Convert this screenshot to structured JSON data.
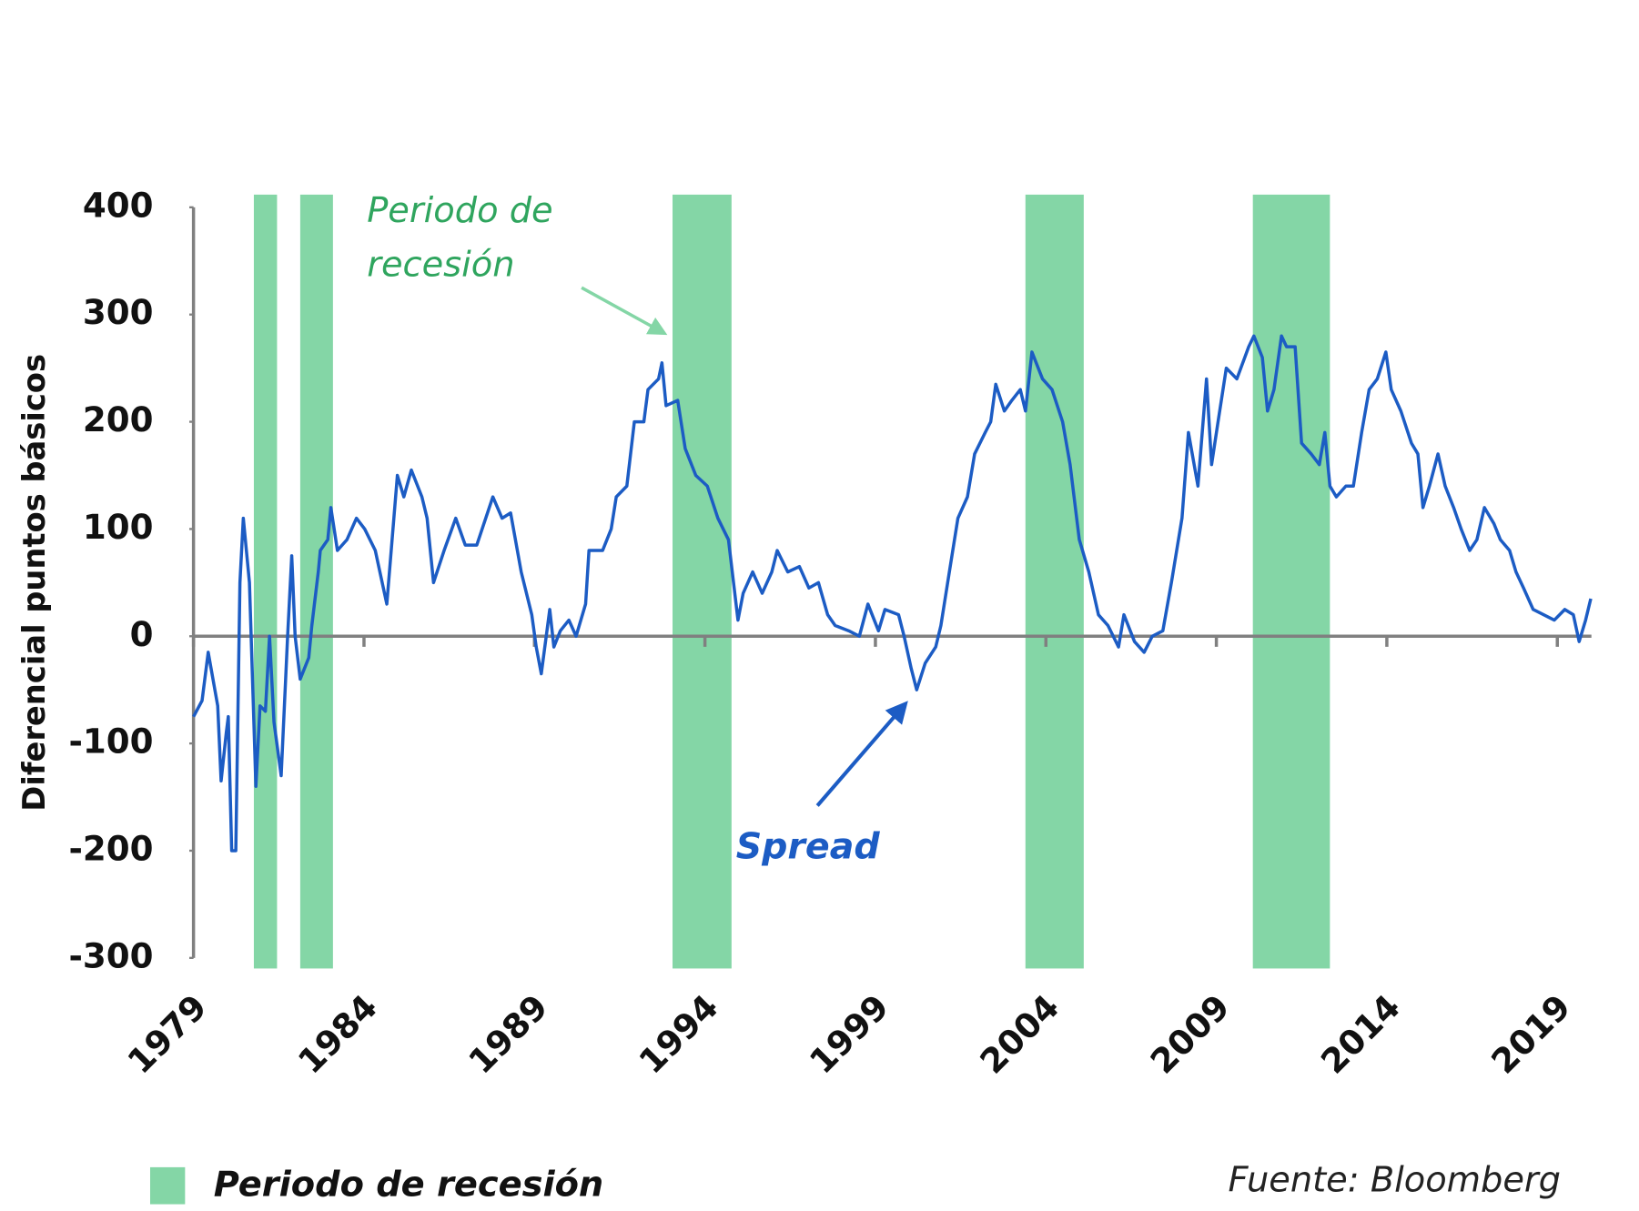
{
  "chart_data": {
    "type": "line",
    "y_label": "Diferencial puntos básicos",
    "source": "Fuente: Bloomberg",
    "annotation": [
      "Periodo de",
      "recesión"
    ],
    "xlim": [
      1979,
      2020
    ],
    "xticks": [
      1979,
      1984,
      1989,
      1994,
      1999,
      2004,
      2009,
      2014,
      2019
    ],
    "ylim": [
      -300,
      400
    ],
    "yticks": [
      -300,
      -200,
      -100,
      0,
      100,
      200,
      300,
      400
    ],
    "recessions": {
      "name": "Periodo de recesión",
      "color": "#84d6a6",
      "periods": [
        [
          1980.77,
          1981.45
        ],
        [
          1982.13,
          1983.09
        ],
        [
          1993.05,
          1994.78
        ],
        [
          2003.4,
          2005.11
        ],
        [
          2010.07,
          2012.33
        ]
      ]
    },
    "x": [
      1979.0,
      1979.25,
      1979.43,
      1979.71,
      1979.81,
      1979.96,
      1980.02,
      1980.12,
      1980.24,
      1980.36,
      1980.46,
      1980.64,
      1980.83,
      1980.95,
      1981.11,
      1981.23,
      1981.36,
      1981.57,
      1981.76,
      1981.88,
      1981.98,
      1982.13,
      1982.38,
      1982.47,
      1982.66,
      1982.72,
      1982.94,
      1983.03,
      1983.22,
      1983.5,
      1983.78,
      1984.02,
      1984.33,
      1984.67,
      1984.98,
      1985.17,
      1985.39,
      1985.7,
      1985.85,
      1986.04,
      1986.35,
      1986.69,
      1986.97,
      1987.31,
      1987.78,
      1988.05,
      1988.3,
      1988.61,
      1988.92,
      1989.05,
      1989.2,
      1989.45,
      1989.57,
      1989.76,
      1990.01,
      1990.22,
      1990.5,
      1990.6,
      1991.0,
      1991.25,
      1991.4,
      1991.71,
      1991.93,
      1992.21,
      1992.33,
      1992.64,
      1992.74,
      1992.86,
      1993.2,
      1993.42,
      1993.73,
      1994.07,
      1994.38,
      1994.69,
      1994.97,
      1995.12,
      1995.4,
      1995.68,
      1995.96,
      1996.12,
      1996.43,
      1996.77,
      1997.05,
      1997.33,
      1997.6,
      1997.82,
      1998.22,
      1998.53,
      1998.78,
      1999.09,
      1999.28,
      1999.68,
      1999.84,
      2000.05,
      2000.21,
      2000.46,
      2000.77,
      2000.92,
      2001.17,
      2001.42,
      2001.7,
      2001.91,
      2002.22,
      2002.38,
      2002.53,
      2002.78,
      2003.0,
      2003.25,
      2003.4,
      2003.59,
      2003.9,
      2004.18,
      2004.49,
      2004.71,
      2004.98,
      2005.26,
      2005.54,
      2005.82,
      2006.13,
      2006.29,
      2006.6,
      2006.88,
      2007.12,
      2007.43,
      2007.68,
      2007.99,
      2008.18,
      2008.46,
      2008.71,
      2008.86,
      2009.05,
      2009.29,
      2009.6,
      2009.95,
      2010.1,
      2010.35,
      2010.5,
      2010.69,
      2010.91,
      2011.06,
      2011.31,
      2011.5,
      2011.78,
      2012.02,
      2012.18,
      2012.33,
      2012.52,
      2012.8,
      2013.02,
      2013.26,
      2013.48,
      2013.72,
      2013.97,
      2014.13,
      2014.41,
      2014.72,
      2014.91,
      2015.06,
      2015.25,
      2015.5,
      2015.71,
      2015.96,
      2016.18,
      2016.43,
      2016.64,
      2016.86,
      2017.14,
      2017.33,
      2017.6,
      2017.79,
      2018.01,
      2018.29,
      2018.6,
      2018.91,
      2019.22,
      2019.47,
      2019.64,
      2019.83,
      2019.98
    ],
    "series": [
      {
        "name": "Spread",
        "color": "#1c5cc4",
        "values": [
          -75,
          -60,
          -15,
          -65,
          -135,
          -90,
          -75,
          -200,
          -200,
          50,
          110,
          50,
          -140,
          -65,
          -70,
          0,
          -80,
          -130,
          0,
          75,
          0,
          -40,
          -20,
          10,
          60,
          80,
          90,
          120,
          80,
          90,
          110,
          100,
          80,
          30,
          150,
          130,
          155,
          130,
          110,
          50,
          80,
          110,
          85,
          85,
          130,
          110,
          115,
          60,
          20,
          -10,
          -35,
          25,
          -10,
          5,
          15,
          0,
          30,
          80,
          80,
          100,
          130,
          140,
          200,
          200,
          230,
          240,
          255,
          215,
          220,
          175,
          150,
          140,
          110,
          90,
          15,
          40,
          60,
          40,
          60,
          80,
          60,
          65,
          45,
          50,
          20,
          10,
          5,
          0,
          30,
          5,
          25,
          20,
          0,
          -30,
          -50,
          -25,
          -10,
          10,
          60,
          110,
          130,
          170,
          190,
          200,
          235,
          210,
          220,
          230,
          210,
          265,
          240,
          230,
          200,
          160,
          90,
          60,
          20,
          10,
          -10,
          20,
          -5,
          -15,
          0,
          5,
          50,
          110,
          190,
          140,
          240,
          160,
          200,
          250,
          240,
          270,
          280,
          260,
          210,
          230,
          280,
          270,
          270,
          180,
          170,
          160,
          190,
          140,
          130,
          140,
          140,
          190,
          230,
          240,
          265,
          230,
          210,
          180,
          170,
          120,
          140,
          170,
          140,
          120,
          100,
          80,
          90,
          120,
          105,
          90,
          80,
          60,
          45,
          25,
          20,
          15,
          25,
          20,
          -5,
          15,
          35
        ]
      }
    ]
  }
}
